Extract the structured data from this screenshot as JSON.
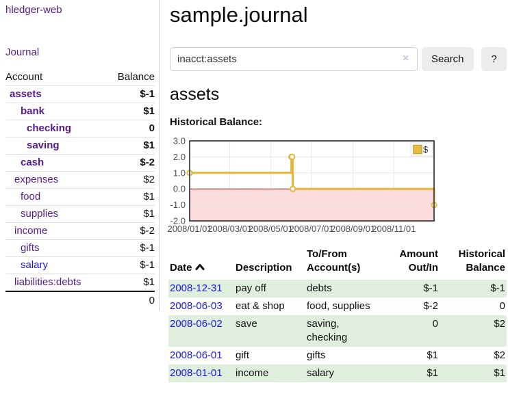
{
  "app": {
    "brand": "hledger-web",
    "nav_journal": "Journal"
  },
  "sidebar": {
    "col_account": "Account",
    "col_balance": "Balance",
    "accounts": [
      {
        "name": "assets",
        "depth": 0,
        "bold": true,
        "selected": true,
        "balance": "$-1",
        "balance_class": "bal-neg"
      },
      {
        "name": "bank",
        "depth": 1,
        "bold": true,
        "balance": "$1",
        "balance_class": ""
      },
      {
        "name": "checking",
        "depth": 2,
        "bold": true,
        "balance": "0",
        "balance_class": ""
      },
      {
        "name": "saving",
        "depth": 2,
        "bold": true,
        "balance": "$1",
        "balance_class": ""
      },
      {
        "name": "cash",
        "depth": 1,
        "bold": true,
        "balance": "$-2",
        "balance_class": "bal-neg"
      },
      {
        "name": "expenses",
        "depth": 0,
        "bold": false,
        "balance": "$2",
        "balance_class": ""
      },
      {
        "name": "food",
        "depth": 1,
        "bold": false,
        "balance": "$1",
        "balance_class": ""
      },
      {
        "name": "supplies",
        "depth": 1,
        "bold": false,
        "balance": "$1",
        "balance_class": ""
      },
      {
        "name": "income",
        "depth": 0,
        "bold": false,
        "balance": "$-2",
        "balance_class": "bal-soft"
      },
      {
        "name": "gifts",
        "depth": 1,
        "bold": false,
        "balance": "$-1",
        "balance_class": "bal-soft"
      },
      {
        "name": "salary",
        "depth": 1,
        "bold": false,
        "unvisited": true,
        "balance": "$-1",
        "balance_class": "bal-soft"
      },
      {
        "name": "liabilities:debts",
        "depth": 0,
        "bold": false,
        "balance": "$1",
        "balance_class": ""
      }
    ],
    "total": "0"
  },
  "header": {
    "title": "sample.journal"
  },
  "search": {
    "value": "inacct:assets",
    "clear_label": "×",
    "button_label": "Search",
    "help_label": "?"
  },
  "account_page": {
    "heading": "assets",
    "chart_label": "Historical Balance:"
  },
  "chart_data": {
    "type": "line",
    "step": true,
    "title": "Historical Balance:",
    "legend": "$",
    "legend_position": "top-right",
    "grid": true,
    "x_range": [
      "2008-01-01",
      "2008-12-31"
    ],
    "y_range": [
      -2,
      3
    ],
    "y_ticks": [
      {
        "value": 3,
        "label": "3.0"
      },
      {
        "value": 2,
        "label": "2.0"
      },
      {
        "value": 1,
        "label": "1.0"
      },
      {
        "value": 0,
        "label": "0.0"
      },
      {
        "value": -1,
        "label": "-1.0"
      },
      {
        "value": -2,
        "label": "-2.0"
      }
    ],
    "x_ticks": [
      {
        "date": "2008-01-01",
        "label": "2008/01/01"
      },
      {
        "date": "2008-03-01",
        "label": "2008/03/01"
      },
      {
        "date": "2008-05-01",
        "label": "2008/05/01"
      },
      {
        "date": "2008-07-01",
        "label": "2008/07/01"
      },
      {
        "date": "2008-09-01",
        "label": "2008/09/01"
      },
      {
        "date": "2008-11-01",
        "label": "2008/11/01"
      }
    ],
    "series": [
      {
        "name": "$",
        "color": "#e5b63a",
        "points": [
          {
            "x": "2008-01-01",
            "y": 1
          },
          {
            "x": "2008-06-01",
            "y": 2
          },
          {
            "x": "2008-06-02",
            "y": 2
          },
          {
            "x": "2008-06-03",
            "y": 0
          },
          {
            "x": "2008-12-31",
            "y": -1
          }
        ]
      }
    ],
    "negative_region_color": "#fbdbdb",
    "zero_line_color": "#8f1d1d"
  },
  "register": {
    "headers": [
      {
        "lines": [
          "Date"
        ],
        "sort": "asc",
        "align": "left"
      },
      {
        "lines": [
          "Description"
        ],
        "align": "left"
      },
      {
        "lines": [
          "To/From",
          "Account(s)"
        ],
        "align": "left"
      },
      {
        "lines": [
          "Amount",
          "Out/In"
        ],
        "align": "right"
      },
      {
        "lines": [
          "Historical",
          "Balance"
        ],
        "align": "right"
      }
    ],
    "rows": [
      {
        "date": "2008-12-31",
        "description": "pay off",
        "accounts": "debts",
        "amount": "$-1",
        "amount_neg": true,
        "balance": "$-1",
        "balance_neg": true
      },
      {
        "date": "2008-06-03",
        "description": "eat & shop",
        "accounts": "food, supplies",
        "amount": "$-2",
        "amount_neg": true,
        "balance": "0",
        "balance_neg": false
      },
      {
        "date": "2008-06-02",
        "description": "save",
        "accounts": "saving, checking",
        "amount": "0",
        "amount_neg": false,
        "balance": "$2",
        "balance_neg": false
      },
      {
        "date": "2008-06-01",
        "description": "gift",
        "accounts": "gifts",
        "amount": "$1",
        "amount_neg": false,
        "balance": "$2",
        "balance_neg": false
      },
      {
        "date": "2008-01-01",
        "description": "income",
        "accounts": "salary",
        "amount": "$1",
        "amount_neg": false,
        "balance": "$1",
        "balance_neg": false
      }
    ]
  }
}
